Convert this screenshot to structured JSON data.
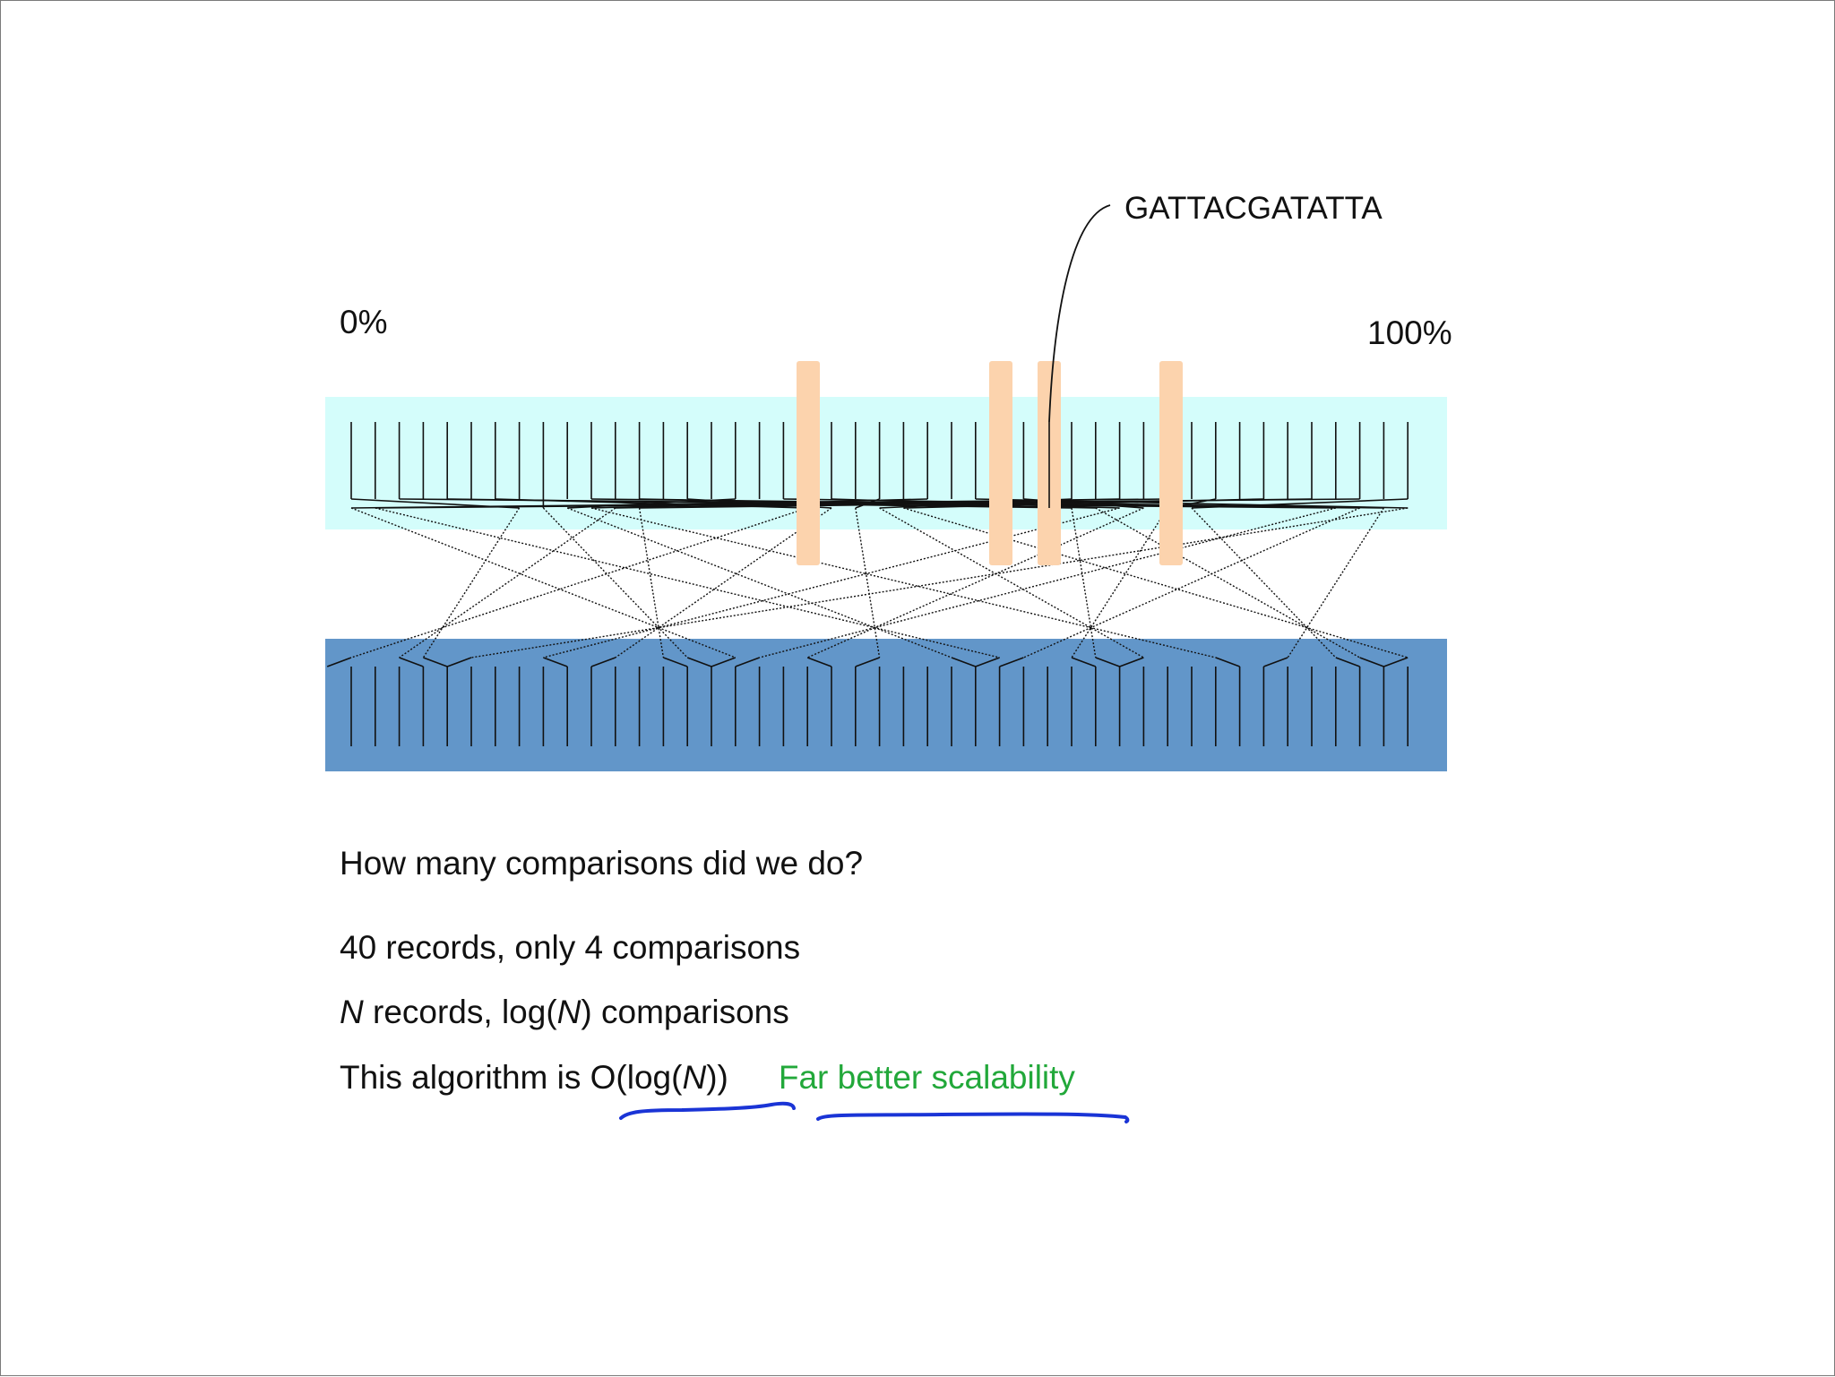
{
  "diagram": {
    "sequence_label": "GATTACGATATTA",
    "percent_start": "0%",
    "percent_end": "100%",
    "colors": {
      "unsorted_band": "#d4fdfb",
      "sorted_band": "#6296c9",
      "highlight": "#fcd3ad",
      "ink_underline": "#1a34d6",
      "accent_text": "#22a83a"
    }
  },
  "text": {
    "question": "How many comparisons did we do?",
    "example": "40 records, only 4 comparisons",
    "general_prefix": "N",
    "general_middle": " records, log(",
    "general_var": "N",
    "general_suffix": ") comparisons",
    "conclusion_prefix": "This algorithm is ",
    "conclusion_big_o_a": "O(log(",
    "conclusion_big_o_var": "N",
    "conclusion_big_o_b": "))",
    "conclusion_accent": "Far better scalability"
  }
}
